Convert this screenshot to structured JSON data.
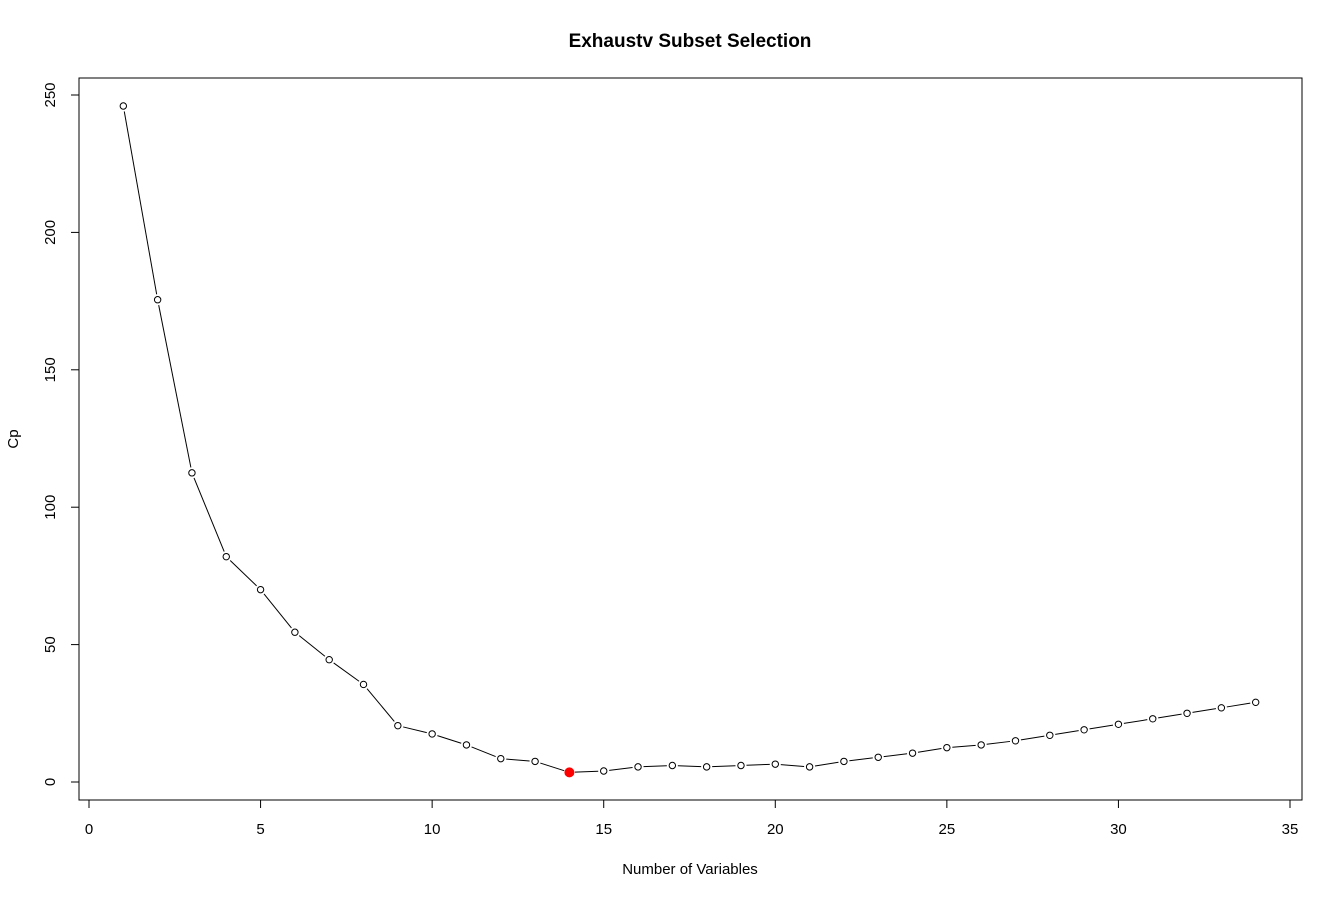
{
  "chart_data": {
    "type": "line",
    "title": "Exhaustv Subset Selection",
    "xlabel": "Number of Variables",
    "ylabel": "Cp",
    "xlim": [
      0,
      35
    ],
    "ylim": [
      0,
      250
    ],
    "xticks": [
      "0",
      "5",
      "10",
      "15",
      "20",
      "25",
      "30",
      "35"
    ],
    "yticks": [
      "0",
      "50",
      "100",
      "150",
      "200",
      "250"
    ],
    "grid": false,
    "series": [
      {
        "x": [
          1,
          2,
          3,
          4,
          5,
          6,
          7,
          8,
          9,
          10,
          11,
          12,
          13,
          14,
          15,
          16,
          17,
          18,
          19,
          20,
          21,
          22,
          23,
          24,
          25,
          26,
          27,
          28,
          29,
          30,
          31,
          32,
          33,
          34
        ],
        "values": [
          246,
          175.5,
          112.5,
          82,
          70,
          54.5,
          44.5,
          35.5,
          20.5,
          17.5,
          13.5,
          8.5,
          7.5,
          3.5,
          4,
          5.5,
          6,
          5.5,
          6,
          6.5,
          5.5,
          7.5,
          9,
          10.5,
          12.5,
          13.5,
          15,
          17,
          19,
          21,
          23,
          25,
          27,
          29
        ]
      }
    ],
    "highlight": {
      "x": 14,
      "y": 3.5,
      "color": "#ff0000"
    },
    "line_color": "#000000",
    "point_fill": "#ffffff"
  }
}
